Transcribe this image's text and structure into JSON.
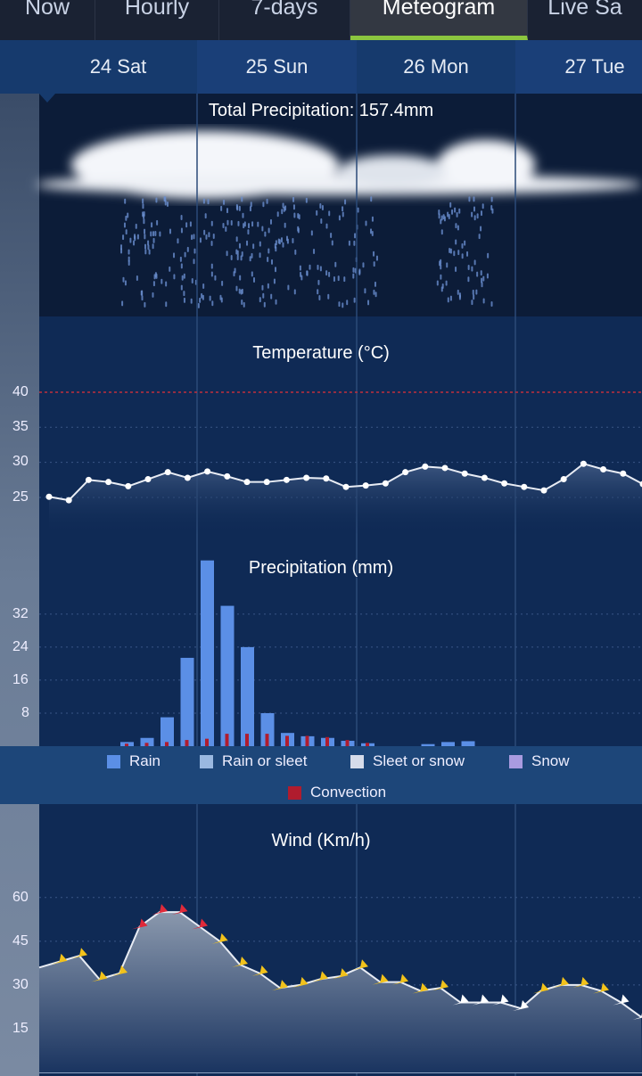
{
  "tabs": [
    {
      "label": "Now"
    },
    {
      "label": "Hourly"
    },
    {
      "label": "7-days"
    },
    {
      "label": "Meteogram"
    },
    {
      "label": "Live Sa"
    }
  ],
  "active_tab": "Meteogram",
  "dates": [
    {
      "label": "24 Sat"
    },
    {
      "label": "25 Sun"
    },
    {
      "label": "26 Mon"
    },
    {
      "label": "27 Tue"
    }
  ],
  "total_precipitation": "Total Precipitation: 157.4mm",
  "colors": {
    "accent": "#8cc63f",
    "rain": "#5b8fe6",
    "rain_sleet": "#9ab8e0",
    "sleet_snow": "#d6dcea",
    "snow": "#a99be0",
    "convection": "#b01c2e",
    "wind_yellow": "#f2c21b",
    "wind_red": "#e02a3a",
    "wind_white": "#ffffff"
  },
  "chart_data": [
    {
      "type": "line",
      "title": "Temperature (°C)",
      "y_ticks": [
        "40",
        "35",
        "30",
        "25"
      ],
      "ylim": [
        25,
        40
      ],
      "reference_line": 40,
      "values": [
        25.1,
        24.6,
        27.5,
        27.2,
        26.6,
        27.6,
        28.6,
        27.8,
        28.7,
        28,
        27.2,
        27.2,
        27.5,
        27.8,
        27.7,
        26.5,
        26.7,
        27,
        28.6,
        29.4,
        29.2,
        28.4,
        27.8,
        27,
        26.5,
        26,
        27.6,
        29.8,
        29,
        28.4,
        26.9
      ]
    },
    {
      "type": "bar",
      "title": "Precipitation (mm)",
      "y_ticks": [
        "32",
        "24",
        "16",
        "8"
      ],
      "ylim": [
        0,
        45
      ],
      "rain": [
        1,
        2,
        7,
        21.4,
        45,
        34,
        24,
        8,
        3.2,
        2.4,
        2,
        1.3,
        0.7,
        0,
        0,
        0.5,
        1,
        1.2
      ],
      "convection": [
        0.6,
        0.8,
        1,
        1.5,
        1.8,
        3,
        3,
        3,
        2.5,
        2.5,
        2.2,
        1.5,
        0.8,
        0,
        0,
        0,
        0,
        0
      ],
      "legend": [
        "Rain",
        "Rain or sleet",
        "Sleet or snow",
        "Snow",
        "Convection"
      ]
    },
    {
      "type": "line",
      "title": "Wind (Km/h)",
      "y_ticks": [
        "60",
        "45",
        "30",
        "15"
      ],
      "ylim": [
        0,
        60
      ],
      "values": [
        36,
        38,
        40,
        32,
        34,
        50,
        55,
        55,
        50,
        45,
        37,
        34,
        29,
        30,
        32,
        33,
        36,
        31,
        31,
        28,
        29,
        24,
        24,
        24,
        22,
        28,
        30,
        30,
        28,
        24,
        19
      ],
      "arrow_colors": [
        "y",
        "y",
        "y",
        "y",
        "y",
        "r",
        "r",
        "r",
        "r",
        "y",
        "y",
        "y",
        "y",
        "y",
        "y",
        "y",
        "y",
        "y",
        "y",
        "y",
        "y",
        "w",
        "w",
        "w",
        "w",
        "y",
        "y",
        "y",
        "y",
        "w",
        "w"
      ]
    }
  ]
}
